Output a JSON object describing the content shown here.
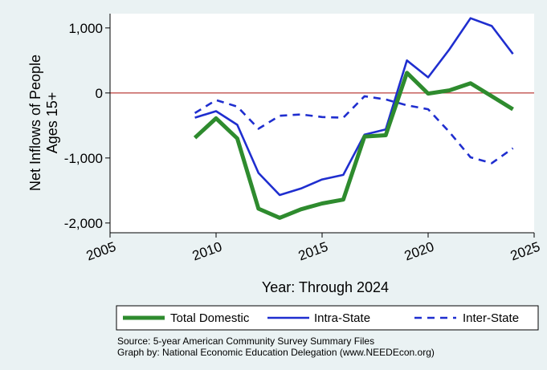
{
  "chart_data": {
    "type": "line",
    "xlabel": "Year: Through 2024",
    "ylabel_lines": [
      "Net Inflows of People",
      "Ages 15+"
    ],
    "xlim": [
      2005,
      2025
    ],
    "ylim": [
      -2150,
      1220
    ],
    "x_ticks": [
      2005,
      2010,
      2015,
      2020,
      2025
    ],
    "x_tick_labels": [
      "2005",
      "2010",
      "2015",
      "2020",
      "2025"
    ],
    "y_ticks": [
      1000,
      0,
      -1000,
      -2000
    ],
    "y_tick_labels": [
      "1,000",
      "0",
      "-1,000",
      "-2,000"
    ],
    "reference_line": {
      "y": 0,
      "color": "#c0504d"
    },
    "grid": false,
    "legend_position": "bottom",
    "series": [
      {
        "name": "Total Domestic",
        "color": "#2e8b2e",
        "dash": "solid",
        "width": "thick",
        "x": [
          2009,
          2010,
          2011,
          2012,
          2013,
          2014,
          2015,
          2016,
          2017,
          2018,
          2019,
          2020,
          2021,
          2022,
          2023,
          2024
        ],
        "y": [
          -690,
          -390,
          -700,
          -1780,
          -1920,
          -1790,
          -1700,
          -1640,
          -670,
          -650,
          310,
          -10,
          40,
          150,
          -50,
          -250
        ]
      },
      {
        "name": "Intra-State",
        "color": "#1f2ecf",
        "dash": "solid",
        "width": "normal",
        "x": [
          2009,
          2010,
          2011,
          2012,
          2013,
          2014,
          2015,
          2016,
          2017,
          2018,
          2019,
          2020,
          2021,
          2022,
          2023,
          2024
        ],
        "y": [
          -380,
          -280,
          -490,
          -1230,
          -1570,
          -1470,
          -1330,
          -1260,
          -640,
          -560,
          500,
          240,
          670,
          1150,
          1030,
          600
        ]
      },
      {
        "name": "Inter-State",
        "color": "#1f2ecf",
        "dash": "dashed",
        "width": "normal",
        "x": [
          2009,
          2010,
          2011,
          2012,
          2013,
          2014,
          2015,
          2016,
          2017,
          2018,
          2019,
          2020,
          2021,
          2022,
          2023,
          2024
        ],
        "y": [
          -310,
          -110,
          -210,
          -550,
          -350,
          -330,
          -370,
          -380,
          -50,
          -100,
          -190,
          -250,
          -600,
          -990,
          -1080,
          -850
        ]
      }
    ]
  },
  "source_lines": [
    "Source: 5-year American Community Survey Summary Files",
    "Graph by: National Economic Education Delegation (www.NEEDEcon.org)"
  ]
}
